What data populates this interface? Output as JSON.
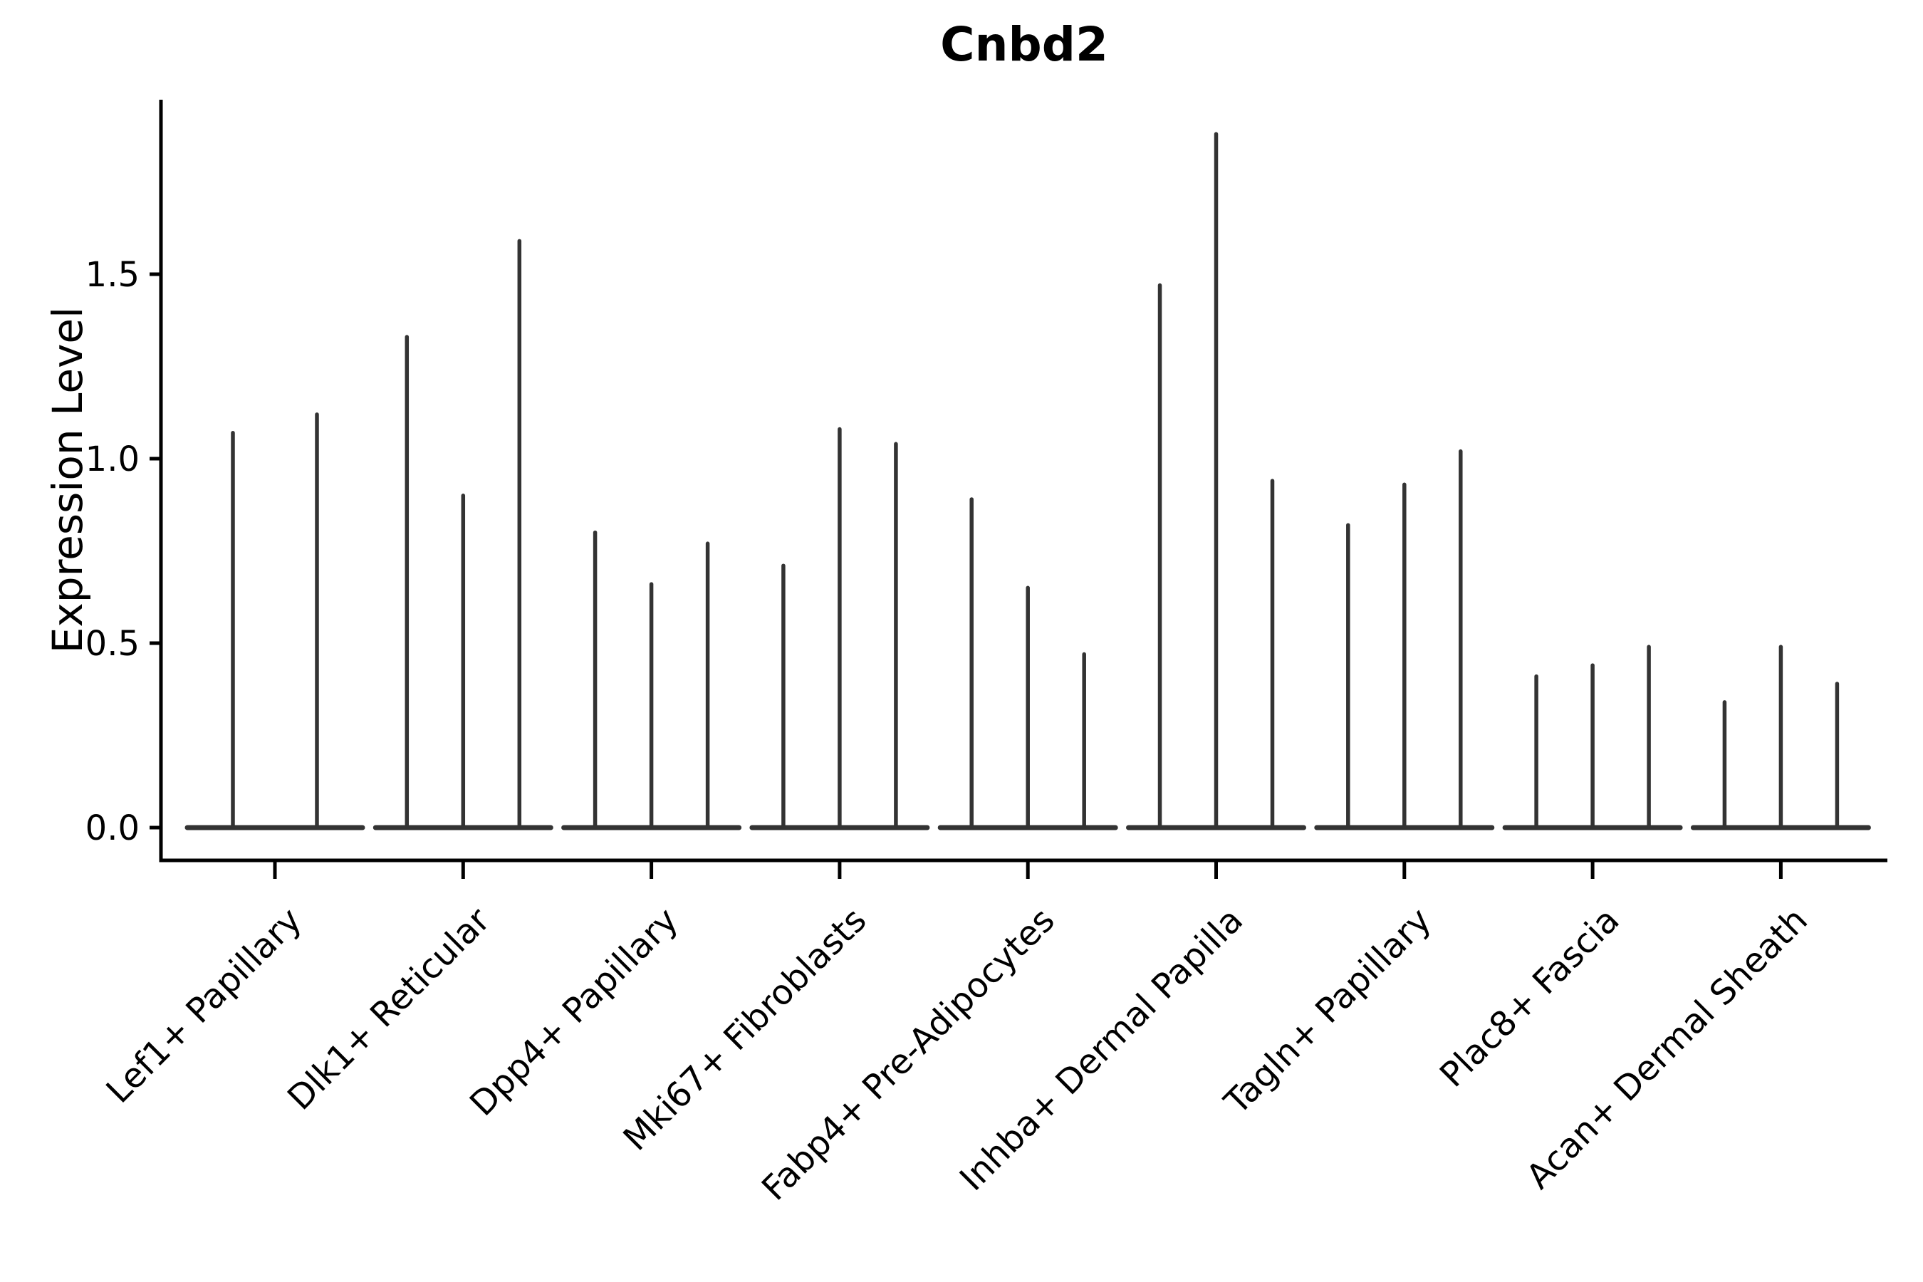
{
  "chart_data": {
    "type": "violin",
    "title": "Cnbd2",
    "ylabel": "Expression Level",
    "xlabel": "",
    "yticks": [
      0.0,
      0.5,
      1.0,
      1.5
    ],
    "ylim": [
      -0.09,
      1.97
    ],
    "grid": false,
    "legend_position": "none",
    "categories": [
      "Lef1+ Papillary",
      "Dlk1+ Reticular",
      "Dpp4+ Papillary",
      "Mki67+ Fibroblasts",
      "Fabp4+ Pre-Adipocytes",
      "Inhba+ Dermal Papilla",
      "Tagln+ Papillary",
      "Plac8+ Fascia",
      "Acan+ Dermal Sheath"
    ],
    "groups": [
      {
        "label": "Lef1+ Papillary",
        "violin_max_expression": [
          1.07,
          1.12
        ]
      },
      {
        "label": "Dlk1+ Reticular",
        "violin_max_expression": [
          1.33,
          0.9,
          1.59
        ]
      },
      {
        "label": "Dpp4+ Papillary",
        "violin_max_expression": [
          0.8,
          0.66,
          0.77
        ]
      },
      {
        "label": "Mki67+ Fibroblasts",
        "violin_max_expression": [
          0.71,
          1.08,
          1.04
        ]
      },
      {
        "label": "Fabp4+ Pre-Adipocytes",
        "violin_max_expression": [
          0.89,
          0.65,
          0.47
        ]
      },
      {
        "label": "Inhba+ Dermal Papilla",
        "violin_max_expression": [
          1.47,
          1.88,
          0.94
        ]
      },
      {
        "label": "Tagln+ Papillary",
        "violin_max_expression": [
          0.82,
          0.93,
          1.02
        ]
      },
      {
        "label": "Plac8+ Fascia",
        "violin_max_expression": [
          0.41,
          0.44,
          0.49
        ]
      },
      {
        "label": "Acan+ Dermal Sheath",
        "violin_max_expression": [
          0.34,
          0.49,
          0.39
        ]
      }
    ],
    "style": {
      "violin_color": "#333333",
      "axis_color": "#000000",
      "background": "#ffffff"
    }
  }
}
